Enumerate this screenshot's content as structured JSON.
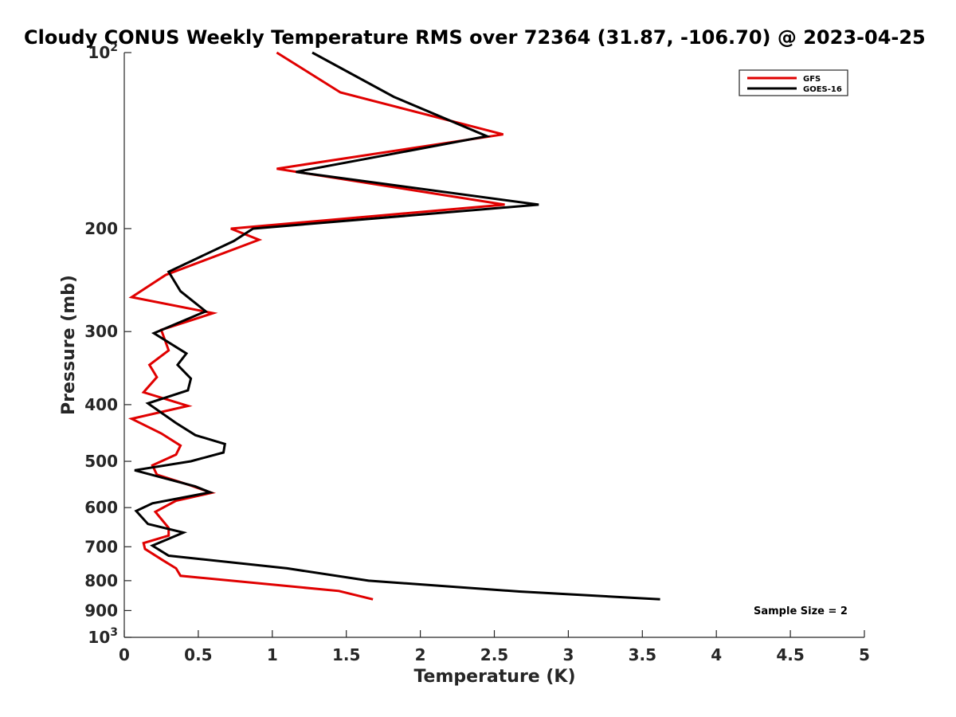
{
  "chart_data": {
    "type": "line",
    "title": "Cloudy CONUS Weekly Temperature RMS over 72364 (31.87, -106.70) @ 2023-04-25",
    "xlabel": "Temperature (K)",
    "ylabel": "Pressure (mb)",
    "xlim": [
      0,
      5
    ],
    "ylim": [
      100,
      1000
    ],
    "yscale": "log",
    "y_reversed": true,
    "grid": false,
    "legend_position": "top-right",
    "x_ticks": [
      0,
      0.5,
      1,
      1.5,
      2,
      2.5,
      3,
      3.5,
      4,
      4.5,
      5
    ],
    "x_tick_labels": [
      "0",
      "0.5",
      "1",
      "1.5",
      "2",
      "2.5",
      "3",
      "3.5",
      "4",
      "4.5",
      "5"
    ],
    "y_ticks": [
      100,
      200,
      300,
      400,
      500,
      600,
      700,
      800,
      900,
      1000
    ],
    "y_tick_labels": [
      {
        "base": "10",
        "exp": "2"
      },
      {
        "base": "200",
        "exp": ""
      },
      {
        "base": "300",
        "exp": ""
      },
      {
        "base": "400",
        "exp": ""
      },
      {
        "base": "500",
        "exp": ""
      },
      {
        "base": "600",
        "exp": ""
      },
      {
        "base": "700",
        "exp": ""
      },
      {
        "base": "800",
        "exp": ""
      },
      {
        "base": "900",
        "exp": ""
      },
      {
        "base": "10",
        "exp": "3"
      }
    ],
    "annotation": "Sample Size = 2",
    "series": [
      {
        "name": "GFS",
        "color": "#e00000",
        "points": [
          [
            1.03,
            100
          ],
          [
            1.46,
            117
          ],
          [
            2.56,
            138
          ],
          [
            1.03,
            158
          ],
          [
            2.57,
            182
          ],
          [
            0.72,
            200
          ],
          [
            0.91,
            209
          ],
          [
            0.28,
            240
          ],
          [
            0.05,
            262
          ],
          [
            0.6,
            279
          ],
          [
            0.25,
            298
          ],
          [
            0.3,
            323
          ],
          [
            0.17,
            342
          ],
          [
            0.22,
            359
          ],
          [
            0.13,
            381
          ],
          [
            0.43,
            402
          ],
          [
            0.05,
            423
          ],
          [
            0.25,
            448
          ],
          [
            0.38,
            470
          ],
          [
            0.35,
            487
          ],
          [
            0.19,
            508
          ],
          [
            0.22,
            527
          ],
          [
            0.45,
            550
          ],
          [
            0.59,
            566
          ],
          [
            0.35,
            584
          ],
          [
            0.21,
            610
          ],
          [
            0.3,
            650
          ],
          [
            0.3,
            670
          ],
          [
            0.13,
            690
          ],
          [
            0.14,
            706
          ],
          [
            0.26,
            738
          ],
          [
            0.35,
            762
          ],
          [
            0.38,
            785
          ],
          [
            1.45,
            833
          ],
          [
            1.68,
            861
          ]
        ]
      },
      {
        "name": "GOES-16",
        "color": "#000000",
        "points": [
          [
            1.27,
            100
          ],
          [
            1.82,
            119
          ],
          [
            2.45,
            139
          ],
          [
            1.16,
            160
          ],
          [
            2.8,
            182
          ],
          [
            0.87,
            200
          ],
          [
            0.74,
            210
          ],
          [
            0.3,
            237
          ],
          [
            0.38,
            256
          ],
          [
            0.55,
            277
          ],
          [
            0.2,
            302
          ],
          [
            0.42,
            327
          ],
          [
            0.36,
            342
          ],
          [
            0.45,
            361
          ],
          [
            0.43,
            378
          ],
          [
            0.16,
            398
          ],
          [
            0.35,
            430
          ],
          [
            0.48,
            451
          ],
          [
            0.68,
            467
          ],
          [
            0.67,
            483
          ],
          [
            0.45,
            500
          ],
          [
            0.07,
            518
          ],
          [
            0.48,
            552
          ],
          [
            0.58,
            565
          ],
          [
            0.19,
            590
          ],
          [
            0.08,
            608
          ],
          [
            0.16,
            640
          ],
          [
            0.4,
            662
          ],
          [
            0.19,
            697
          ],
          [
            0.3,
            725
          ],
          [
            1.1,
            762
          ],
          [
            1.65,
            800
          ],
          [
            2.67,
            835
          ],
          [
            3.62,
            861
          ]
        ]
      }
    ]
  }
}
